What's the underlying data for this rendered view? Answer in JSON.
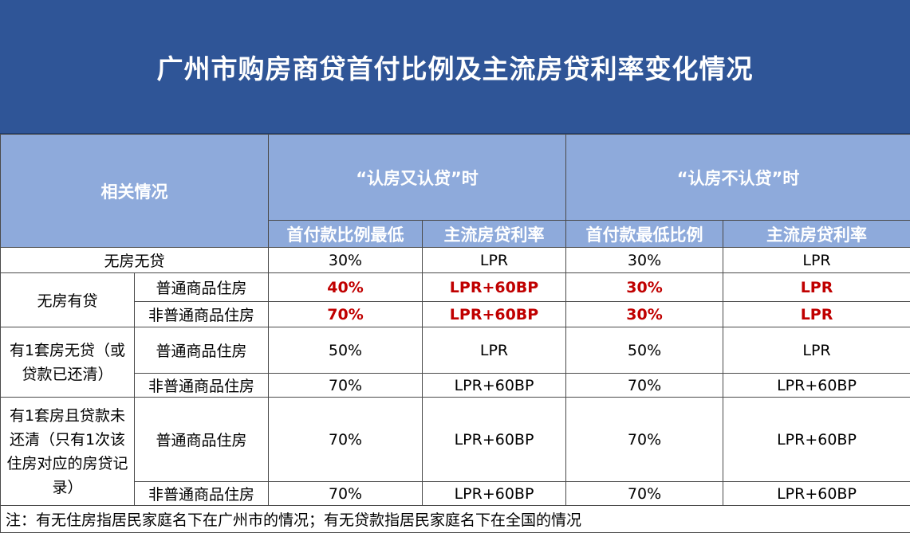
{
  "title": "广州市购房商贷首付比例及主流房贷利率变化情况",
  "header": {
    "related": "相关情况",
    "group_a": "“认房又认贷”时",
    "group_b": "“认房不认贷”时",
    "col_down_a": "首付款比例最低",
    "col_rate_a": "主流房贷利率",
    "col_down_b": "首付款最低比例",
    "col_rate_b": "主流房贷利率"
  },
  "rows": {
    "r1": {
      "label": "无房无贷",
      "a_down": "30%",
      "a_rate": "LPR",
      "b_down": "30%",
      "b_rate": "LPR"
    },
    "g2": {
      "label": "无房有贷"
    },
    "r2a": {
      "sub": "普通商品住房",
      "a_down": "40%",
      "a_rate": "LPR+60BP",
      "b_down": "30%",
      "b_rate": "LPR"
    },
    "r2b": {
      "sub": "非普通商品住房",
      "a_down": "70%",
      "a_rate": "LPR+60BP",
      "b_down": "30%",
      "b_rate": "LPR"
    },
    "g3": {
      "line1": "有1套房无贷（或",
      "line2": "贷款已还清）"
    },
    "r3a": {
      "sub": "普通商品住房",
      "a_down": "50%",
      "a_rate": "LPR",
      "b_down": "50%",
      "b_rate": "LPR"
    },
    "r3b": {
      "sub": "非普通商品住房",
      "a_down": "70%",
      "a_rate": "LPR+60BP",
      "b_down": "70%",
      "b_rate": "LPR+60BP"
    },
    "g4": {
      "line1": "有1套房且贷款未",
      "line2": "还清（只有1次该",
      "line3": "住房对应的房贷记",
      "line4": "录）"
    },
    "r4a": {
      "sub": "普通商品住房",
      "a_down": "70%",
      "a_rate": "LPR+60BP",
      "b_down": "70%",
      "b_rate": "LPR+60BP"
    },
    "r4b": {
      "sub": "非普通商品住房",
      "a_down": "70%",
      "a_rate": "LPR+60BP",
      "b_down": "70%",
      "b_rate": "LPR+60BP"
    }
  },
  "note": "注：有无住房指居民家庭名下在广州市的情况；有无贷款指居民家庭名下在全国的情况",
  "colors": {
    "title_bg": "#2f5597",
    "header_bg": "#8eaadb",
    "highlight": "#c00000"
  }
}
